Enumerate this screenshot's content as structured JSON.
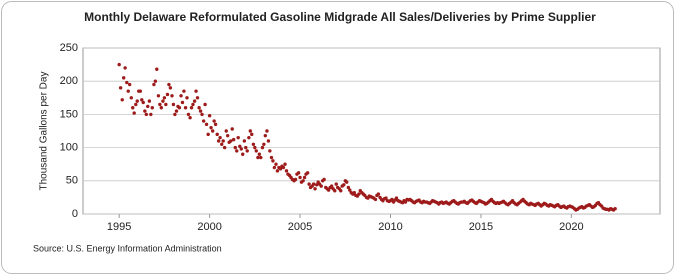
{
  "chart_data": {
    "type": "scatter",
    "title": "Monthly Delaware Reformulated Gasoline Midgrade All Sales/Deliveries by Prime Supplier",
    "y_label": "Thousand Gallons per Day",
    "source": "Source: U.S. Energy Information Administration",
    "color": "#9e1b1b",
    "grid": true,
    "xlim": [
      1993,
      2024.9
    ],
    "xticks": [
      1995,
      2000,
      2005,
      2010,
      2015,
      2020
    ],
    "ylim": [
      0,
      250
    ],
    "yticks": [
      0,
      50,
      100,
      150,
      200,
      250
    ],
    "x": [
      1995,
      1995.08,
      1995.17,
      1995.25,
      1995.33,
      1995.42,
      1995.5,
      1995.58,
      1995.67,
      1995.75,
      1995.83,
      1995.92,
      1996,
      1996.08,
      1996.17,
      1996.25,
      1996.33,
      1996.42,
      1996.5,
      1996.58,
      1996.67,
      1996.75,
      1996.83,
      1996.92,
      1997,
      1997.08,
      1997.17,
      1997.25,
      1997.33,
      1997.42,
      1997.5,
      1997.58,
      1997.67,
      1997.75,
      1997.83,
      1997.92,
      1998,
      1998.08,
      1998.17,
      1998.25,
      1998.33,
      1998.42,
      1998.5,
      1998.58,
      1998.67,
      1998.75,
      1998.83,
      1998.92,
      1999,
      1999.08,
      1999.17,
      1999.25,
      1999.33,
      1999.42,
      1999.5,
      1999.58,
      1999.67,
      1999.75,
      1999.83,
      1999.92,
      2000,
      2000.08,
      2000.17,
      2000.25,
      2000.33,
      2000.42,
      2000.5,
      2000.58,
      2000.67,
      2000.75,
      2000.83,
      2000.92,
      2001,
      2001.08,
      2001.17,
      2001.25,
      2001.33,
      2001.42,
      2001.5,
      2001.58,
      2001.67,
      2001.75,
      2001.83,
      2001.92,
      2002,
      2002.08,
      2002.17,
      2002.25,
      2002.33,
      2002.42,
      2002.5,
      2002.58,
      2002.67,
      2002.75,
      2002.83,
      2002.92,
      2003,
      2003.08,
      2003.17,
      2003.25,
      2003.33,
      2003.42,
      2003.5,
      2003.58,
      2003.67,
      2003.75,
      2003.83,
      2003.92,
      2004,
      2004.08,
      2004.17,
      2004.25,
      2004.33,
      2004.42,
      2004.5,
      2004.58,
      2004.67,
      2004.75,
      2004.83,
      2004.92,
      2005,
      2005.08,
      2005.17,
      2005.25,
      2005.33,
      2005.42,
      2005.5,
      2005.58,
      2005.67,
      2005.75,
      2005.83,
      2005.92,
      2006,
      2006.08,
      2006.17,
      2006.25,
      2006.33,
      2006.42,
      2006.5,
      2006.58,
      2006.67,
      2006.75,
      2006.83,
      2006.92,
      2007,
      2007.08,
      2007.17,
      2007.25,
      2007.33,
      2007.42,
      2007.5,
      2007.58,
      2007.67,
      2007.75,
      2007.83,
      2007.92,
      2008,
      2008.08,
      2008.17,
      2008.25,
      2008.33,
      2008.42,
      2008.5,
      2008.58,
      2008.67,
      2008.75,
      2008.83,
      2008.92,
      2009,
      2009.08,
      2009.17,
      2009.25,
      2009.33,
      2009.42,
      2009.5,
      2009.58,
      2009.67,
      2009.75,
      2009.83,
      2009.92,
      2010,
      2010.08,
      2010.17,
      2010.25,
      2010.33,
      2010.42,
      2010.5,
      2010.58,
      2010.67,
      2010.75,
      2010.83,
      2010.92,
      2011,
      2011.08,
      2011.17,
      2011.25,
      2011.33,
      2011.42,
      2011.5,
      2011.58,
      2011.67,
      2011.75,
      2011.83,
      2011.92,
      2012,
      2012.08,
      2012.17,
      2012.25,
      2012.33,
      2012.42,
      2012.5,
      2012.58,
      2012.67,
      2012.75,
      2012.83,
      2012.92,
      2013,
      2013.08,
      2013.17,
      2013.25,
      2013.33,
      2013.42,
      2013.5,
      2013.58,
      2013.67,
      2013.75,
      2013.83,
      2013.92,
      2014,
      2014.08,
      2014.17,
      2014.25,
      2014.33,
      2014.42,
      2014.5,
      2014.58,
      2014.67,
      2014.75,
      2014.83,
      2014.92,
      2015,
      2015.08,
      2015.17,
      2015.25,
      2015.33,
      2015.42,
      2015.5,
      2015.58,
      2015.67,
      2015.75,
      2015.83,
      2015.92,
      2016,
      2016.08,
      2016.17,
      2016.25,
      2016.33,
      2016.42,
      2016.5,
      2016.58,
      2016.67,
      2016.75,
      2016.83,
      2016.92,
      2017,
      2017.08,
      2017.17,
      2017.25,
      2017.33,
      2017.42,
      2017.5,
      2017.58,
      2017.67,
      2017.75,
      2017.83,
      2017.92,
      2018,
      2018.08,
      2018.17,
      2018.25,
      2018.33,
      2018.42,
      2018.5,
      2018.58,
      2018.67,
      2018.75,
      2018.83,
      2018.92,
      2019,
      2019.08,
      2019.17,
      2019.25,
      2019.33,
      2019.42,
      2019.5,
      2019.58,
      2019.67,
      2019.75,
      2019.83,
      2019.92,
      2020,
      2020.08,
      2020.17,
      2020.25,
      2020.33,
      2020.42,
      2020.5,
      2020.58,
      2020.67,
      2020.75,
      2020.83,
      2020.92,
      2021,
      2021.08,
      2021.17,
      2021.25,
      2021.33,
      2021.42,
      2021.5,
      2021.58,
      2021.67,
      2021.75,
      2021.83,
      2021.92,
      2022,
      2022.08,
      2022.17,
      2022.25,
      2022.33,
      2022.42
    ],
    "values": [
      225,
      190,
      172,
      205,
      220,
      198,
      185,
      195,
      175,
      160,
      152,
      165,
      170,
      185,
      185,
      172,
      168,
      155,
      150,
      162,
      170,
      150,
      160,
      195,
      200,
      218,
      178,
      165,
      160,
      170,
      175,
      165,
      180,
      195,
      190,
      178,
      165,
      150,
      155,
      162,
      160,
      178,
      168,
      185,
      160,
      175,
      150,
      145,
      160,
      165,
      170,
      185,
      175,
      160,
      155,
      150,
      140,
      165,
      135,
      120,
      148,
      130,
      125,
      140,
      135,
      120,
      110,
      115,
      105,
      110,
      100,
      125,
      118,
      108,
      110,
      128,
      112,
      100,
      95,
      115,
      102,
      98,
      90,
      110,
      100,
      95,
      115,
      125,
      120,
      105,
      100,
      95,
      85,
      90,
      85,
      100,
      105,
      118,
      125,
      110,
      95,
      85,
      80,
      70,
      75,
      65,
      70,
      68,
      72,
      70,
      75,
      65,
      60,
      58,
      55,
      52,
      50,
      52,
      60,
      62,
      55,
      48,
      50,
      55,
      60,
      62,
      45,
      40,
      42,
      45,
      38,
      44,
      48,
      45,
      42,
      50,
      52,
      40,
      38,
      36,
      40,
      42,
      38,
      35,
      45,
      40,
      38,
      35,
      42,
      44,
      50,
      48,
      40,
      36,
      32,
      30,
      32,
      28,
      27,
      30,
      35,
      32,
      30,
      28,
      25,
      24,
      27,
      26,
      25,
      24,
      22,
      28,
      30,
      25,
      22,
      20,
      23,
      24,
      20,
      19,
      20,
      22,
      18,
      21,
      24,
      20,
      19,
      18,
      17,
      20,
      18,
      22,
      21,
      22,
      20,
      18,
      17,
      19,
      20,
      21,
      18,
      17,
      19,
      18,
      18,
      17,
      16,
      18,
      20,
      19,
      18,
      17,
      15,
      17,
      18,
      16,
      17,
      18,
      16,
      15,
      17,
      19,
      20,
      18,
      16,
      15,
      17,
      18,
      18,
      19,
      17,
      16,
      18,
      20,
      21,
      19,
      17,
      16,
      18,
      20,
      19,
      18,
      17,
      15,
      16,
      18,
      20,
      22,
      19,
      17,
      16,
      17,
      16,
      17,
      18,
      19,
      17,
      15,
      14,
      16,
      18,
      20,
      17,
      15,
      14,
      16,
      18,
      20,
      22,
      19,
      17,
      15,
      14,
      16,
      15,
      14,
      13,
      15,
      16,
      14,
      12,
      14,
      16,
      15,
      13,
      12,
      14,
      13,
      12,
      11,
      13,
      14,
      12,
      10,
      11,
      12,
      10,
      9,
      11,
      12,
      11,
      10,
      8,
      6,
      7,
      9,
      10,
      11,
      9,
      10,
      12,
      13,
      14,
      12,
      10,
      11,
      13,
      16,
      17,
      14,
      12,
      9,
      8,
      7,
      7,
      6,
      8,
      7,
      6,
      8
    ]
  }
}
